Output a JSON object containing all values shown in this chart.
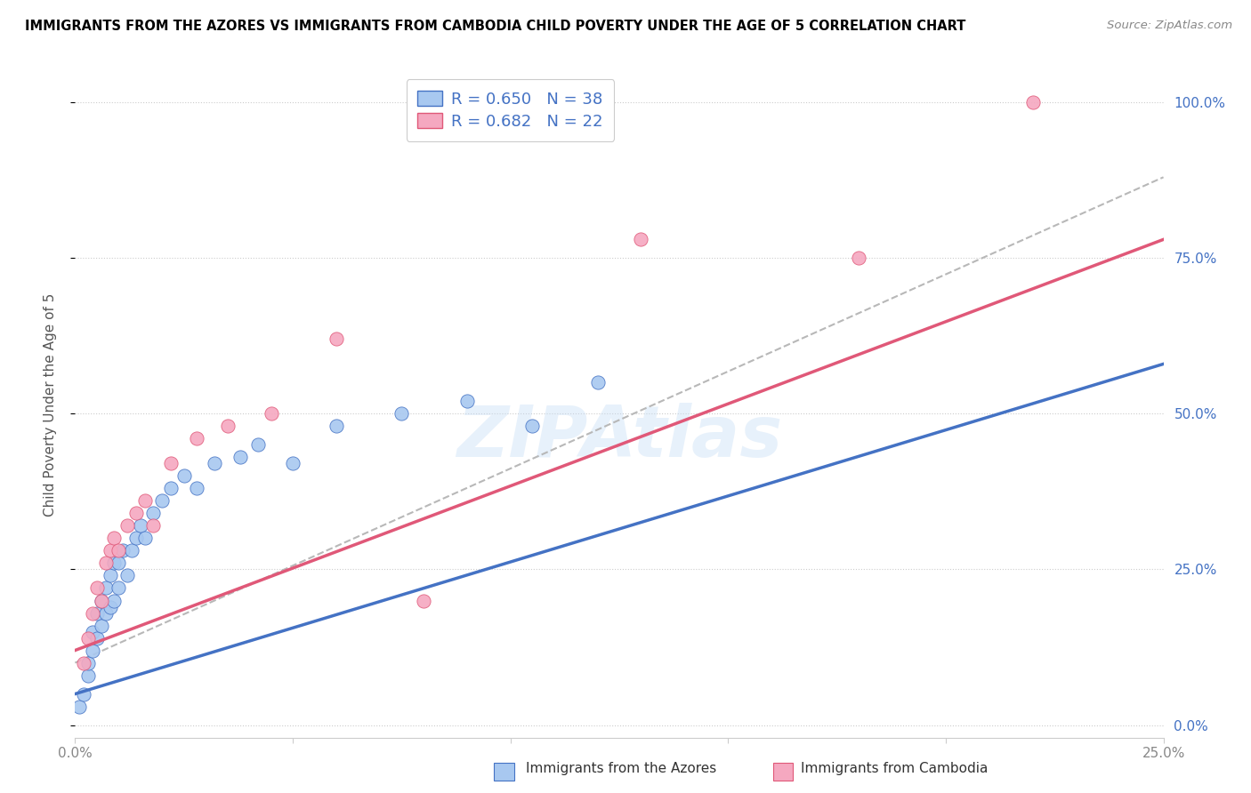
{
  "title": "IMMIGRANTS FROM THE AZORES VS IMMIGRANTS FROM CAMBODIA CHILD POVERTY UNDER THE AGE OF 5 CORRELATION CHART",
  "source": "Source: ZipAtlas.com",
  "ylabel_label": "Child Poverty Under the Age of 5",
  "ytick_labels": [
    "0.0%",
    "25.0%",
    "50.0%",
    "75.0%",
    "100.0%"
  ],
  "xlim": [
    0.0,
    0.25
  ],
  "ylim": [
    -0.02,
    1.05
  ],
  "legend_r1": "R = 0.650",
  "legend_n1": "N = 38",
  "legend_r2": "R = 0.682",
  "legend_n2": "N = 22",
  "color_azores": "#a8c8f0",
  "color_cambodia": "#f5a8c0",
  "line_color_azores": "#4472c4",
  "line_color_cambodia": "#e05878",
  "line_color_combined": "#b8b8b8",
  "watermark": "ZIPAtlas",
  "azores_x": [
    0.001,
    0.002,
    0.003,
    0.003,
    0.004,
    0.004,
    0.005,
    0.005,
    0.006,
    0.006,
    0.007,
    0.007,
    0.008,
    0.008,
    0.009,
    0.009,
    0.01,
    0.01,
    0.011,
    0.012,
    0.013,
    0.014,
    0.015,
    0.016,
    0.018,
    0.02,
    0.022,
    0.025,
    0.028,
    0.032,
    0.038,
    0.042,
    0.05,
    0.06,
    0.075,
    0.09,
    0.105,
    0.12
  ],
  "azores_y": [
    0.03,
    0.05,
    0.08,
    0.1,
    0.12,
    0.15,
    0.14,
    0.18,
    0.16,
    0.2,
    0.18,
    0.22,
    0.19,
    0.24,
    0.2,
    0.26,
    0.22,
    0.26,
    0.28,
    0.24,
    0.28,
    0.3,
    0.32,
    0.3,
    0.34,
    0.36,
    0.38,
    0.4,
    0.38,
    0.42,
    0.43,
    0.45,
    0.42,
    0.48,
    0.5,
    0.52,
    0.48,
    0.55
  ],
  "cambodia_x": [
    0.002,
    0.003,
    0.004,
    0.005,
    0.006,
    0.007,
    0.008,
    0.009,
    0.01,
    0.012,
    0.014,
    0.016,
    0.018,
    0.022,
    0.028,
    0.035,
    0.045,
    0.06,
    0.08,
    0.13,
    0.18,
    0.22
  ],
  "cambodia_y": [
    0.1,
    0.14,
    0.18,
    0.22,
    0.2,
    0.26,
    0.28,
    0.3,
    0.28,
    0.32,
    0.34,
    0.36,
    0.32,
    0.42,
    0.46,
    0.48,
    0.5,
    0.62,
    0.2,
    0.78,
    0.75,
    1.0
  ],
  "azores_line_x": [
    0.0,
    0.25
  ],
  "azores_line_y": [
    0.05,
    0.58
  ],
  "cambodia_line_x": [
    0.0,
    0.25
  ],
  "cambodia_line_y": [
    0.12,
    0.78
  ],
  "combined_line_x": [
    0.0,
    0.25
  ],
  "combined_line_y": [
    0.1,
    0.88
  ]
}
